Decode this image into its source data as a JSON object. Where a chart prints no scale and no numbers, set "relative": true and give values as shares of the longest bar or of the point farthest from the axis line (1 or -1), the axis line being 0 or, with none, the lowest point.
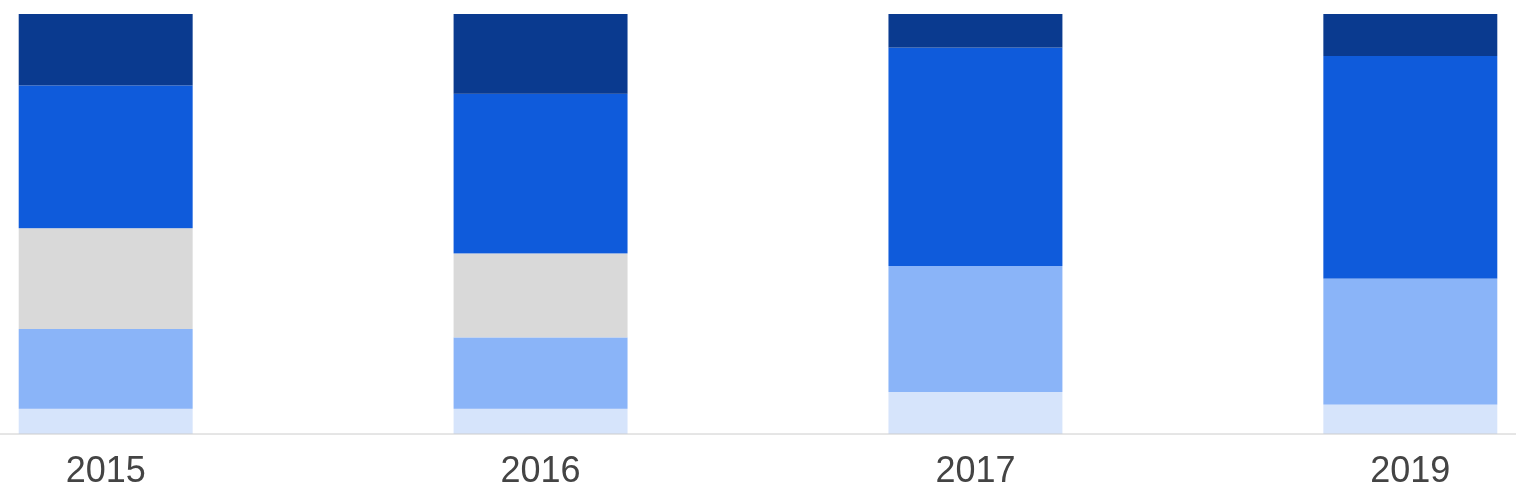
{
  "chart_data": {
    "type": "bar",
    "stacked": true,
    "relative": true,
    "categories": [
      "2015",
      "2016",
      "2017",
      "2019"
    ],
    "series": [
      {
        "color": "#d6e4fb",
        "values": [
          0.06,
          0.06,
          0.1,
          0.07
        ]
      },
      {
        "color": "#8ab4f8",
        "values": [
          0.19,
          0.17,
          0.3,
          0.3
        ]
      },
      {
        "color": "#d9d9d9",
        "values": [
          0.24,
          0.2,
          0,
          0
        ]
      },
      {
        "color": "#0f5bdb",
        "values": [
          0.34,
          0.38,
          0.52,
          0.53
        ]
      },
      {
        "color": "#0a3a8f",
        "values": [
          0.17,
          0.19,
          0.08,
          0.1
        ]
      }
    ]
  }
}
